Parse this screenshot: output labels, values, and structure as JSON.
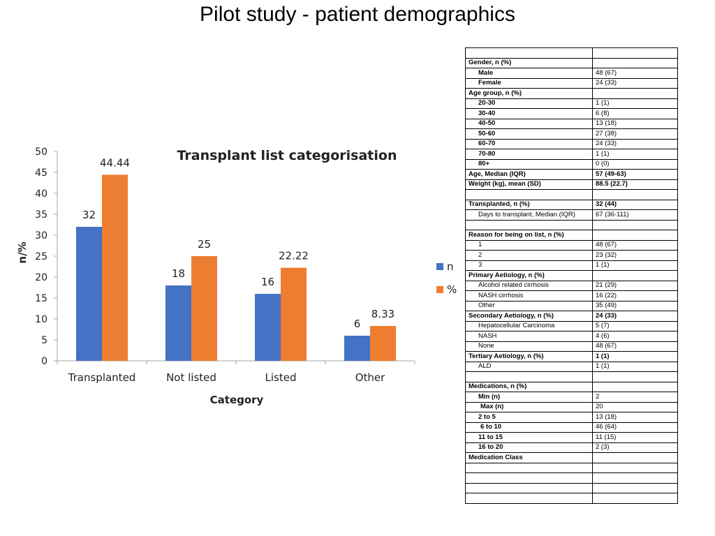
{
  "page": {
    "title": "Pilot study - patient demographics"
  },
  "chart_data": {
    "type": "bar",
    "title": "Transplant list categorisation",
    "xlabel": "Category",
    "ylabel": "n/%",
    "categories": [
      "Transplanted",
      "Not listed",
      "Listed",
      "Other"
    ],
    "series": [
      {
        "name": "n",
        "values": [
          32,
          18,
          16,
          6
        ],
        "labels": [
          "32",
          "18",
          "16",
          "6"
        ],
        "color": "#4472C4"
      },
      {
        "name": "%",
        "values": [
          44.44,
          25,
          22.22,
          8.33
        ],
        "labels": [
          "44.44",
          "25",
          "22.22",
          "8.33"
        ],
        "color": "#ED7D31"
      }
    ],
    "ylim": [
      0,
      50
    ],
    "yticks": [
      "0",
      "5",
      "10",
      "15",
      "20",
      "25",
      "30",
      "35",
      "40",
      "45",
      "50"
    ],
    "grid": false,
    "legend_position": "right"
  },
  "table": {
    "rows": [
      {
        "label": "",
        "value": "",
        "style": "header"
      },
      {
        "label": "Gender, n (%)",
        "value": "",
        "style": "header"
      },
      {
        "label": "Male",
        "value": "48 (67)",
        "style": "sub-bold"
      },
      {
        "label": "Female",
        "value": "24 (33)",
        "style": "sub-bold"
      },
      {
        "label": "Age group, n (%)",
        "value": "",
        "style": "header"
      },
      {
        "label": "20-30",
        "value": "1 (1)",
        "style": "sub-bold"
      },
      {
        "label": "30-40",
        "value": "6 (8)",
        "style": "sub-bold"
      },
      {
        "label": "40-50",
        "value": "13 (18)",
        "style": "sub-bold"
      },
      {
        "label": "50-60",
        "value": "27 (38)",
        "style": "sub-bold"
      },
      {
        "label": "60-70",
        "value": "24 (33)",
        "style": "sub-bold"
      },
      {
        "label": "70-80",
        "value": "1 (1)",
        "style": "sub-bold"
      },
      {
        "label": "80+",
        "value": "0 (0)",
        "style": "sub-bold"
      },
      {
        "label": "Age, Median (IQR)",
        "value": "57 (49-63)",
        "style": "header"
      },
      {
        "label": "Weight (kg), mean (SD)",
        "value": "88.5 (22.7)",
        "style": "header"
      },
      {
        "label": "",
        "value": "",
        "style": "header"
      },
      {
        "label": "Transplanted, n (%)",
        "value": "32 (44)",
        "style": "header"
      },
      {
        "label": "Days to transplant,  Median (IQR)",
        "value": "67 (36-111)",
        "style": "sub"
      },
      {
        "label": "",
        "value": "",
        "style": "header"
      },
      {
        "label": "Reason for being on list, n (%)",
        "value": "",
        "style": "header"
      },
      {
        "label": "1",
        "value": "48 (67)",
        "style": "sub"
      },
      {
        "label": "2",
        "value": "23 (32)",
        "style": "sub"
      },
      {
        "label": "3",
        "value": "1 (1)",
        "style": "sub"
      },
      {
        "label": "Primary Aetiology, n (%)",
        "value": "",
        "style": "header"
      },
      {
        "label": "Alcohol related cirrhosis",
        "value": "21 (29)",
        "style": "sub"
      },
      {
        "label": "NASH cirrhosis",
        "value": "16 (22)",
        "style": "sub"
      },
      {
        "label": "Other",
        "value": "35 (49)",
        "style": "sub"
      },
      {
        "label": "Secondary Aetiology, n (%)",
        "value": "24 (33)",
        "style": "header"
      },
      {
        "label": "Hepatocellular Carcinoma",
        "value": "5 (7)",
        "style": "sub"
      },
      {
        "label": "NASH",
        "value": "4 (6)",
        "style": "sub"
      },
      {
        "label": "None",
        "value": "48 (67)",
        "style": "sub"
      },
      {
        "label": "Tertiary Aetiology, n (%)",
        "value": "1 (1)",
        "style": "header"
      },
      {
        "label": "ALD",
        "value": "1 (1)",
        "style": "sub"
      },
      {
        "label": "",
        "value": "",
        "style": "header"
      },
      {
        "label": "Medications, n (%)",
        "value": "",
        "style": "header"
      },
      {
        "label": "Min (n)",
        "value": "2",
        "style": "sub-bold"
      },
      {
        "label": "Max (n)",
        "value": "20",
        "style": "sub-bold-indent"
      },
      {
        "label": "2 to 5",
        "value": "13 (18)",
        "style": "sub-bold"
      },
      {
        "label": "6 to 10",
        "value": "46 (64)",
        "style": "sub-bold-indent"
      },
      {
        "label": "11 to 15",
        "value": "11 (15)",
        "style": "sub-bold"
      },
      {
        "label": "16 to 20",
        "value": "2 (3)",
        "style": "sub-bold"
      },
      {
        "label": "Medication Class",
        "value": "",
        "style": "header"
      },
      {
        "label": "",
        "value": "",
        "style": "header"
      },
      {
        "label": "",
        "value": "",
        "style": "header"
      },
      {
        "label": "",
        "value": "",
        "style": "header"
      },
      {
        "label": "",
        "value": "",
        "style": "header"
      }
    ]
  }
}
